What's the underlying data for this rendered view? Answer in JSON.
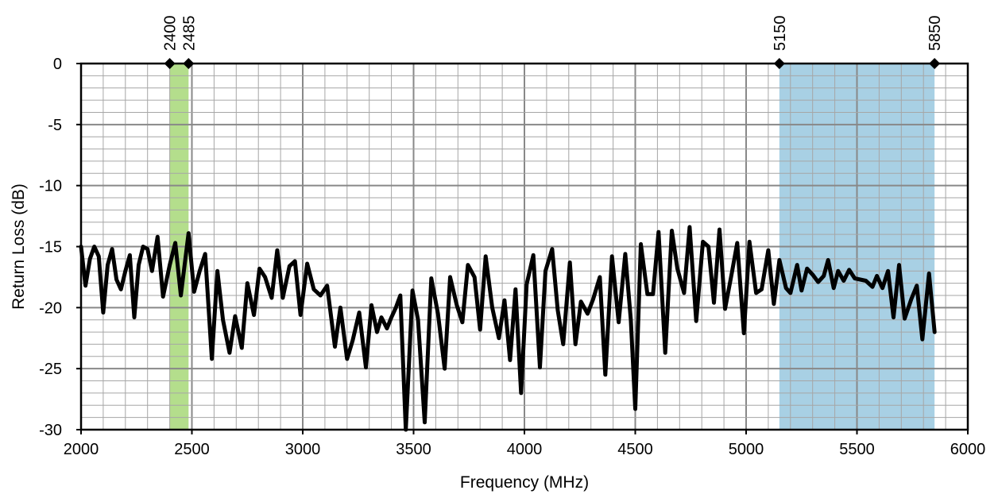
{
  "chart_data": {
    "type": "line",
    "xlabel": "Frequency (MHz)",
    "ylabel": "Return Loss (dB)",
    "xlim": [
      2000,
      6000
    ],
    "ylim": [
      -30,
      0
    ],
    "x_ticks": [
      2000,
      2500,
      3000,
      3500,
      4000,
      4500,
      5000,
      5500,
      6000
    ],
    "y_ticks": [
      0,
      -5,
      -10,
      -15,
      -20,
      -25,
      -30
    ],
    "x_tick_labels": [
      "2000",
      "2500",
      "3000",
      "3500",
      "4000",
      "4500",
      "5000",
      "5500",
      "6000"
    ],
    "y_tick_labels": [
      "0",
      "-5",
      "-10",
      "-15",
      "-20",
      "-25",
      "-30"
    ],
    "x_minor_step": 100,
    "y_minor_step": 1,
    "grid": true,
    "bands": [
      {
        "start": 2400,
        "end": 2485,
        "color": "#b4de8c"
      },
      {
        "start": 5150,
        "end": 5850,
        "color": "#a8d0e4"
      }
    ],
    "markers": [
      {
        "x": 2400,
        "label": "2400"
      },
      {
        "x": 2485,
        "label": "2485"
      },
      {
        "x": 5150,
        "label": "5150"
      },
      {
        "x": 5850,
        "label": "5850"
      }
    ],
    "series": [
      {
        "color": "#000000",
        "points": [
          [
            2000,
            -15
          ],
          [
            2020,
            -18.2
          ],
          [
            2040,
            -16
          ],
          [
            2060,
            -15
          ],
          [
            2080,
            -15.8
          ],
          [
            2100,
            -20.4
          ],
          [
            2120,
            -16.5
          ],
          [
            2140,
            -15.2
          ],
          [
            2160,
            -17.7
          ],
          [
            2180,
            -18.5
          ],
          [
            2200,
            -17
          ],
          [
            2220,
            -15.7
          ],
          [
            2240,
            -20.8
          ],
          [
            2260,
            -16.5
          ],
          [
            2280,
            -15
          ],
          [
            2300,
            -15.2
          ],
          [
            2320,
            -17
          ],
          [
            2345,
            -14.2
          ],
          [
            2370,
            -19.1
          ],
          [
            2400,
            -16.5
          ],
          [
            2425,
            -14.7
          ],
          [
            2450,
            -19
          ],
          [
            2485,
            -13.9
          ],
          [
            2510,
            -18.7
          ],
          [
            2535,
            -17
          ],
          [
            2560,
            -15.6
          ],
          [
            2590,
            -24.2
          ],
          [
            2615,
            -17
          ],
          [
            2640,
            -21
          ],
          [
            2670,
            -23.7
          ],
          [
            2695,
            -20.7
          ],
          [
            2725,
            -23.3
          ],
          [
            2750,
            -18
          ],
          [
            2780,
            -20.6
          ],
          [
            2805,
            -16.8
          ],
          [
            2830,
            -17.5
          ],
          [
            2860,
            -19.2
          ],
          [
            2885,
            -15.3
          ],
          [
            2910,
            -19.2
          ],
          [
            2940,
            -16.6
          ],
          [
            2965,
            -16.2
          ],
          [
            2990,
            -20.6
          ],
          [
            3020,
            -16.4
          ],
          [
            3050,
            -18.5
          ],
          [
            3080,
            -19
          ],
          [
            3110,
            -18.2
          ],
          [
            3145,
            -23.2
          ],
          [
            3170,
            -20
          ],
          [
            3200,
            -24.2
          ],
          [
            3225,
            -22.7
          ],
          [
            3255,
            -20.4
          ],
          [
            3285,
            -24.9
          ],
          [
            3310,
            -19.8
          ],
          [
            3335,
            -22
          ],
          [
            3355,
            -20.8
          ],
          [
            3380,
            -21.7
          ],
          [
            3400,
            -20.8
          ],
          [
            3420,
            -20
          ],
          [
            3440,
            -19
          ],
          [
            3465,
            -30
          ],
          [
            3495,
            -18.6
          ],
          [
            3520,
            -21
          ],
          [
            3550,
            -29.4
          ],
          [
            3580,
            -17.6
          ],
          [
            3610,
            -20.5
          ],
          [
            3640,
            -25
          ],
          [
            3665,
            -17.5
          ],
          [
            3695,
            -19.8
          ],
          [
            3720,
            -21.2
          ],
          [
            3745,
            -16.5
          ],
          [
            3775,
            -17.5
          ],
          [
            3800,
            -21.8
          ],
          [
            3825,
            -15.8
          ],
          [
            3855,
            -20
          ],
          [
            3885,
            -22.5
          ],
          [
            3910,
            -19.4
          ],
          [
            3935,
            -24.3
          ],
          [
            3960,
            -18.5
          ],
          [
            3985,
            -27
          ],
          [
            4010,
            -18.1
          ],
          [
            4040,
            -15.7
          ],
          [
            4070,
            -24.9
          ],
          [
            4095,
            -17
          ],
          [
            4125,
            -15.2
          ],
          [
            4150,
            -20.2
          ],
          [
            4175,
            -23
          ],
          [
            4205,
            -16.3
          ],
          [
            4230,
            -23
          ],
          [
            4255,
            -19.5
          ],
          [
            4285,
            -20.5
          ],
          [
            4310,
            -19.3
          ],
          [
            4340,
            -17.5
          ],
          [
            4365,
            -25.5
          ],
          [
            4395,
            -15.8
          ],
          [
            4425,
            -21.2
          ],
          [
            4455,
            -15.6
          ],
          [
            4480,
            -21
          ],
          [
            4500,
            -28.3
          ],
          [
            4525,
            -14.8
          ],
          [
            4555,
            -18.9
          ],
          [
            4580,
            -18.9
          ],
          [
            4605,
            -13.8
          ],
          [
            4635,
            -23.7
          ],
          [
            4665,
            -13.7
          ],
          [
            4690,
            -16.8
          ],
          [
            4720,
            -18.8
          ],
          [
            4745,
            -13.4
          ],
          [
            4775,
            -21.1
          ],
          [
            4805,
            -14.6
          ],
          [
            4830,
            -15
          ],
          [
            4855,
            -19.6
          ],
          [
            4880,
            -13.6
          ],
          [
            4905,
            -20.1
          ],
          [
            4935,
            -17.2
          ],
          [
            4960,
            -14.7
          ],
          [
            4990,
            -22.1
          ],
          [
            5015,
            -14.6
          ],
          [
            5045,
            -18.8
          ],
          [
            5070,
            -18.5
          ],
          [
            5100,
            -15.3
          ],
          [
            5125,
            -19.7
          ],
          [
            5150,
            -16.1
          ],
          [
            5180,
            -18.4
          ],
          [
            5200,
            -18.8
          ],
          [
            5230,
            -16.5
          ],
          [
            5250,
            -18.6
          ],
          [
            5275,
            -16.8
          ],
          [
            5300,
            -17.3
          ],
          [
            5325,
            -17.9
          ],
          [
            5350,
            -17.4
          ],
          [
            5370,
            -16.1
          ],
          [
            5395,
            -18.4
          ],
          [
            5415,
            -17
          ],
          [
            5440,
            -17.8
          ],
          [
            5465,
            -16.9
          ],
          [
            5490,
            -17.6
          ],
          [
            5515,
            -17.7
          ],
          [
            5540,
            -17.8
          ],
          [
            5570,
            -18.3
          ],
          [
            5590,
            -17.4
          ],
          [
            5615,
            -18.4
          ],
          [
            5640,
            -17
          ],
          [
            5665,
            -20.8
          ],
          [
            5690,
            -16.5
          ],
          [
            5715,
            -20.9
          ],
          [
            5745,
            -19.3
          ],
          [
            5770,
            -18.2
          ],
          [
            5795,
            -22.6
          ],
          [
            5825,
            -17.2
          ],
          [
            5850,
            -22
          ]
        ]
      }
    ]
  }
}
